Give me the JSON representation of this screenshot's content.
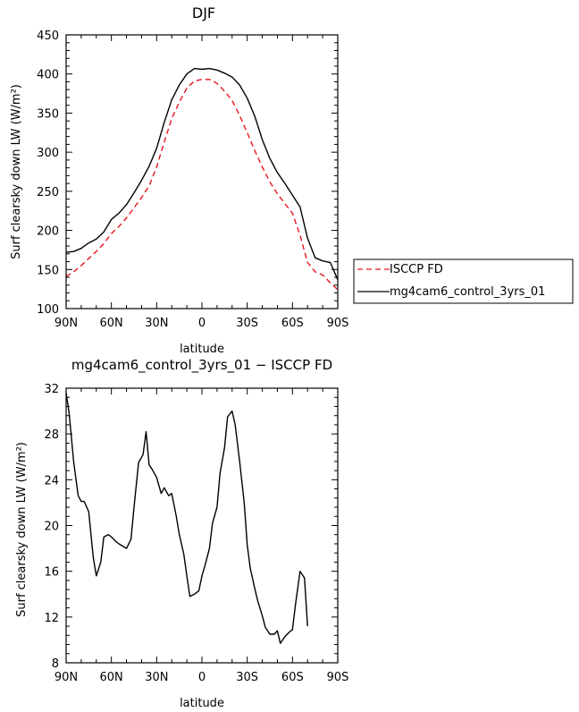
{
  "chart_data": [
    {
      "type": "line",
      "title": "DJF",
      "xlabel": "latitude",
      "ylabel": "Surf clearsky down LW (W/m²)",
      "x": [
        -90,
        -85,
        -80,
        -75,
        -70,
        -65,
        -60,
        -55,
        -50,
        -45,
        -40,
        -35,
        -30,
        -25,
        -20,
        -15,
        -10,
        -5,
        0,
        5,
        10,
        15,
        20,
        25,
        30,
        35,
        40,
        45,
        50,
        55,
        60,
        65,
        70,
        75,
        80,
        85,
        90
      ],
      "xlim": [
        -90,
        90
      ],
      "ylim": [
        100,
        450
      ],
      "xticks": [
        -90,
        -60,
        -30,
        0,
        30,
        60,
        90
      ],
      "xticklabels": [
        "90N",
        "60N",
        "30N",
        "0",
        "30S",
        "60S",
        "90S"
      ],
      "yticks": [
        100,
        150,
        200,
        250,
        300,
        350,
        400,
        450
      ],
      "yticklabels": [
        "100",
        "150",
        "200",
        "250",
        "300",
        "350",
        "400",
        "450"
      ],
      "series": [
        {
          "name": "ISCCP FD",
          "color": "#e8141a",
          "dash": "dashed",
          "values": [
            141,
            147,
            155,
            164,
            173,
            183,
            196,
            205,
            216,
            229,
            242,
            257,
            281,
            313,
            343,
            364,
            382,
            391,
            393,
            393,
            388,
            378,
            366,
            347,
            325,
            302,
            281,
            262,
            247,
            234,
            222,
            194,
            159,
            147,
            143,
            133,
            124
          ]
        },
        {
          "name": "mg4cam6_control_3yrs_01",
          "color": "#000000",
          "dash": "solid",
          "values": [
            172,
            173,
            177,
            184,
            189,
            198,
            214,
            222,
            233,
            248,
            264,
            282,
            305,
            338,
            367,
            386,
            400,
            407,
            406,
            407,
            405,
            401,
            396,
            386,
            369,
            346,
            316,
            292,
            274,
            260,
            245,
            230,
            190,
            165,
            161,
            159,
            137
          ]
        }
      ],
      "legend": "right"
    },
    {
      "type": "line",
      "title": "mg4cam6_control_3yrs_01 − ISCCP FD",
      "xlabel": "latitude",
      "ylabel": "Surf clearsky down LW (W/m²)",
      "x": [
        -90,
        -88,
        -85,
        -82,
        -80,
        -78,
        -75,
        -72,
        -70,
        -67,
        -65,
        -62,
        -60,
        -57,
        -55,
        -50,
        -47,
        -45,
        -42,
        -39,
        -37,
        -35,
        -33,
        -30,
        -27,
        -25,
        -22,
        -20,
        -17,
        -15,
        -12,
        -10,
        -8,
        -5,
        -2,
        0,
        2,
        5,
        7,
        10,
        12,
        15,
        17,
        20,
        22,
        25,
        28,
        30,
        32,
        35,
        37,
        40,
        42,
        45,
        48,
        50,
        52,
        55,
        58,
        60,
        62,
        65,
        68,
        70,
        72,
        75,
        77,
        80,
        82,
        85,
        88,
        90
      ],
      "xlim": [
        -90,
        90
      ],
      "ylim": [
        8,
        32
      ],
      "xticks": [
        -90,
        -60,
        -30,
        0,
        30,
        60,
        90
      ],
      "xticklabels": [
        "90N",
        "60N",
        "30N",
        "0",
        "30S",
        "60S",
        "90S"
      ],
      "yticks": [
        8,
        12,
        16,
        20,
        24,
        28,
        32
      ],
      "yticklabels": [
        "8",
        "12",
        "16",
        "20",
        "24",
        "28",
        "32"
      ],
      "series": [
        {
          "color": "#000000",
          "dash": "solid",
          "values": [
            31.6,
            29.8,
            25.6,
            22.6,
            22.1,
            22.1,
            21.2,
            17.2,
            15.6,
            16.8,
            19.0,
            19.2,
            19.0,
            18.6,
            18.4,
            18.0,
            18.8,
            21.6,
            25.5,
            26.2,
            28.2,
            25.3,
            24.9,
            24.2,
            22.8,
            23.3,
            22.6,
            22.8,
            20.8,
            19.2,
            17.5,
            15.6,
            13.8,
            14.0,
            14.3,
            15.6,
            16.5,
            18.0,
            20.2,
            21.6,
            24.6,
            26.8,
            29.5,
            30.0,
            28.8,
            25.6,
            22.0,
            18.3,
            16.3,
            14.5,
            13.4,
            12.1,
            11.1,
            10.5,
            10.5,
            10.8,
            9.7,
            10.3,
            10.7,
            10.9,
            13.1,
            16.0,
            15.4,
            11.2,
            null,
            null,
            null,
            null,
            null,
            null,
            null,
            null
          ]
        }
      ]
    }
  ]
}
